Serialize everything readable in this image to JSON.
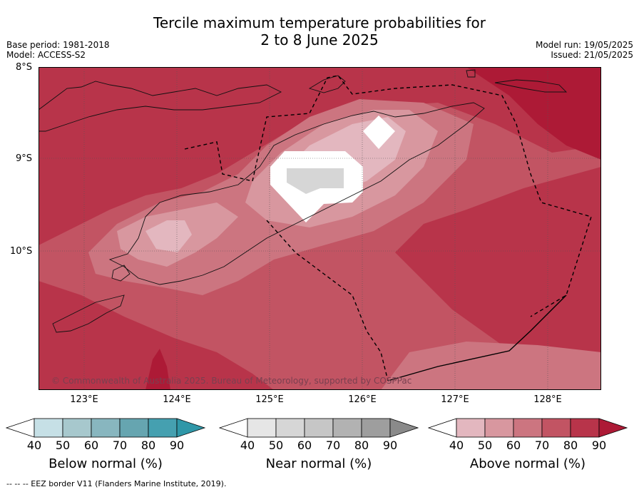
{
  "title_line1": "Tercile maximum temperature probabilities for",
  "title_line2": "2 to 8 June 2025",
  "base_period": "Base period: 1981-2018",
  "model": "Model: ACCESS-S2",
  "model_run": "Model run: 19/05/2025",
  "issued": "Issued: 21/05/2025",
  "lat_labels": [
    "8°S",
    "9°S",
    "10°S"
  ],
  "lon_labels": [
    "123°E",
    "124°E",
    "125°E",
    "126°E",
    "127°E",
    "128°E"
  ],
  "copyright": "© Commonwealth of Australia 2025. Bureau of Meteorology, supported by COSPPac",
  "footer": "--  --  -- EEZ border V11 (Flanders Marine Institute, 2019).",
  "colorbars": [
    {
      "title": "Below normal (%)",
      "ticks": [
        "40",
        "50",
        "60",
        "70",
        "80",
        "90"
      ],
      "colors": [
        "#ffffff",
        "#c6e0e6",
        "#a7c8cd",
        "#88b6bf",
        "#66a5b0",
        "#45a0b0",
        "#2f97a8"
      ]
    },
    {
      "title": "Near normal (%)",
      "ticks": [
        "40",
        "50",
        "60",
        "70",
        "80",
        "90"
      ],
      "colors": [
        "#ffffff",
        "#e6e6e6",
        "#d6d6d6",
        "#c6c6c6",
        "#b2b2b2",
        "#9e9e9e",
        "#8a8a8a"
      ]
    },
    {
      "title": "Above normal (%)",
      "ticks": [
        "40",
        "50",
        "60",
        "70",
        "80",
        "90"
      ],
      "colors": [
        "#ffffff",
        "#e3b7bf",
        "#d8979f",
        "#cc7580",
        "#c25463",
        "#b8344a",
        "#ad1a36"
      ]
    }
  ]
}
